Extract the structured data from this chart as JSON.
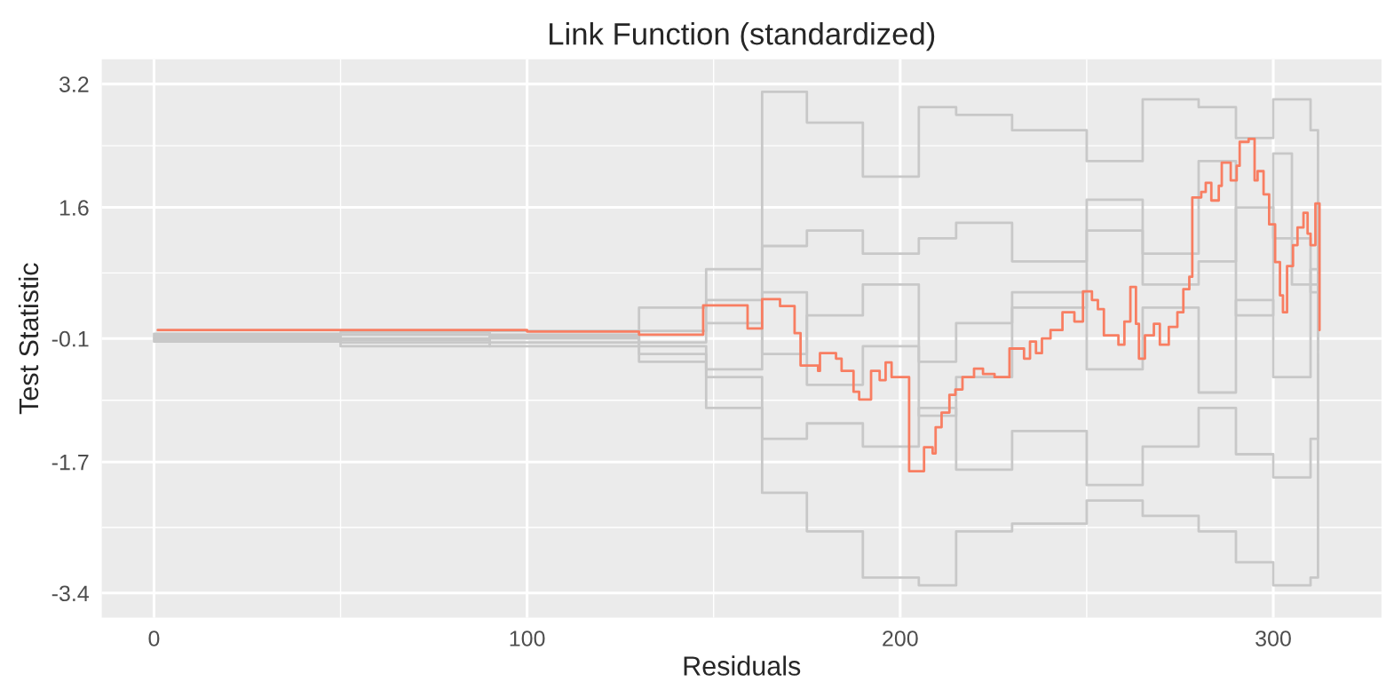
{
  "chart_data": {
    "type": "step",
    "title": "Link Function (standardized)",
    "xlabel": "Residuals",
    "ylabel": "Test Statistic",
    "xlim": [
      -14,
      329
    ],
    "ylim": [
      -3.72,
      3.52
    ],
    "xticks": [
      0,
      100,
      200,
      300
    ],
    "yticks": [
      -3.4,
      -1.7,
      -0.1,
      1.6,
      3.2
    ],
    "grid": true,
    "legend": false,
    "series": [
      {
        "color": "#c8c8c8",
        "x": [
          0,
          50,
          90,
          130,
          148,
          163,
          175,
          190,
          205,
          215,
          230,
          250,
          265,
          280,
          290,
          300,
          310,
          312
        ],
        "values": [
          -0.08,
          -0.1,
          -0.05,
          -0.15,
          0.1,
          3.1,
          2.7,
          2.0,
          2.9,
          2.8,
          2.6,
          2.2,
          3.0,
          2.9,
          2.5,
          3.0,
          2.6,
          0.0
        ]
      },
      {
        "color": "#c8c8c8",
        "x": [
          0,
          50,
          90,
          130,
          148,
          163,
          175,
          190,
          205,
          215,
          230,
          250,
          265,
          280,
          290,
          300,
          310,
          312
        ],
        "values": [
          -0.12,
          -0.15,
          -0.2,
          -0.3,
          -0.6,
          -2.1,
          -2.6,
          -3.2,
          -3.3,
          -2.6,
          -2.5,
          -2.2,
          -2.4,
          -2.6,
          -3.0,
          -3.3,
          -3.2,
          -0.1
        ]
      },
      {
        "color": "#c8c8c8",
        "x": [
          0,
          50,
          90,
          130,
          148,
          163,
          175,
          190,
          205,
          215,
          230,
          250,
          265,
          280,
          290,
          300,
          310,
          312
        ],
        "values": [
          -0.1,
          -0.05,
          0.0,
          0.3,
          0.8,
          1.1,
          1.3,
          1.0,
          1.2,
          1.4,
          0.9,
          1.3,
          0.6,
          0.9,
          1.6,
          1.2,
          0.5,
          -0.2
        ]
      },
      {
        "color": "#c8c8c8",
        "x": [
          0,
          50,
          90,
          130,
          148,
          163,
          175,
          190,
          205,
          215,
          230,
          250,
          265,
          280,
          290,
          300,
          310,
          312
        ],
        "values": [
          -0.14,
          -0.2,
          -0.1,
          -0.4,
          -1.0,
          -1.4,
          -1.2,
          -1.5,
          -1.0,
          -1.8,
          -1.3,
          -2.0,
          -1.5,
          -1.0,
          -1.6,
          -1.9,
          -1.4,
          -0.3
        ]
      },
      {
        "color": "#c8c8c8",
        "x": [
          0,
          50,
          90,
          130,
          148,
          163,
          175,
          190,
          205,
          215,
          230,
          250,
          265,
          280,
          290,
          300,
          310,
          312
        ],
        "values": [
          -0.06,
          -0.12,
          -0.15,
          0.0,
          0.4,
          -0.3,
          0.2,
          0.6,
          -0.4,
          0.1,
          0.5,
          -0.5,
          0.3,
          -0.8,
          0.4,
          -0.6,
          0.8,
          0.1
        ]
      },
      {
        "color": "#c8c8c8",
        "x": [
          0,
          50,
          90,
          130,
          148,
          163,
          175,
          190,
          205,
          215,
          230,
          250,
          265,
          280,
          290,
          300,
          305,
          312
        ],
        "values": [
          -0.04,
          -0.02,
          -0.08,
          -0.2,
          -0.5,
          0.5,
          -0.7,
          -0.2,
          -1.1,
          -0.6,
          0.3,
          1.7,
          1.0,
          2.2,
          0.2,
          2.3,
          0.6,
          -0.25
        ]
      },
      {
        "color": "#f87e62",
        "x": [
          1,
          100,
          130,
          147.2,
          159.1,
          163,
          167.8,
          171.7,
          173.3,
          178,
          178.5,
          182.8,
          184.3,
          187.5,
          189,
          192.2,
          194.5,
          196.1,
          197.7,
          202.4,
          206.4,
          208.7,
          209.5,
          211.1,
          213.2,
          214.8,
          216.7,
          219.8,
          222.2,
          225.3,
          229.3,
          233.2,
          234.8,
          236.4,
          238,
          240.3,
          243.5,
          246.7,
          249,
          251.4,
          253,
          254.6,
          258.5,
          260.1,
          261.7,
          263.2,
          264,
          265.6,
          268,
          269.6,
          272,
          274.3,
          275.9,
          277.5,
          278.3,
          280.7,
          281.9,
          283.4,
          285.4,
          286.2,
          288.6,
          290.2,
          291,
          293.4,
          295,
          295.8,
          297.4,
          298.9,
          300.5,
          301.8,
          302.6,
          303.7,
          305.3,
          306.5,
          308.1,
          309.2,
          310,
          311.3,
          312.4
        ],
        "values": [
          0.01,
          -0.01,
          -0.05,
          0.33,
          0.03,
          0.41,
          0.32,
          -0.03,
          -0.45,
          -0.52,
          -0.29,
          -0.36,
          -0.52,
          -0.79,
          -0.89,
          -0.52,
          -0.64,
          -0.41,
          -0.6,
          -1.82,
          -1.51,
          -1.59,
          -1.25,
          -1.06,
          -0.83,
          -0.76,
          -0.6,
          -0.49,
          -0.56,
          -0.6,
          -0.23,
          -0.36,
          -0.14,
          -0.29,
          -0.1,
          0.01,
          0.24,
          0.12,
          0.51,
          0.4,
          0.28,
          -0.06,
          -0.18,
          0.12,
          0.57,
          0.09,
          -0.36,
          -0.06,
          0.09,
          -0.18,
          0.05,
          0.24,
          0.54,
          0.7,
          1.73,
          1.8,
          1.92,
          1.69,
          1.88,
          2.18,
          1.95,
          2.14,
          2.45,
          2.49,
          1.95,
          2.07,
          1.77,
          1.38,
          0.89,
          0.46,
          0.24,
          0.84,
          1.11,
          1.34,
          1.53,
          1.26,
          1.11,
          1.65,
          0.01
        ]
      }
    ]
  }
}
